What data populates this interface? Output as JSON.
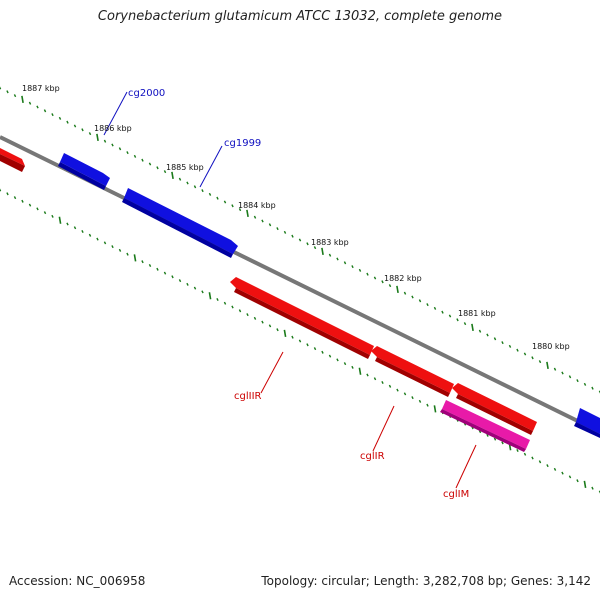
{
  "title": "Corynebacterium glutamicum ATCC 13032, complete genome",
  "footer": {
    "accession": "Accession: NC_006958",
    "summary": "Topology: circular; Length: 3,282,708 bp; Genes: 3,142"
  },
  "colors": {
    "backbone": "#777777",
    "tick": "#1a7a1a",
    "forward_gene": "#1010e0",
    "reverse_gene": "#ee1010",
    "methylase": "#e81aa8",
    "forward_label": "#1010c0",
    "reverse_label": "#cc0000"
  },
  "ticks": [
    {
      "label": "1887 kbp"
    },
    {
      "label": "1886 kbp"
    },
    {
      "label": "1885 kbp"
    },
    {
      "label": "1884 kbp"
    },
    {
      "label": "1883 kbp"
    },
    {
      "label": "1882 kbp"
    },
    {
      "label": "1881 kbp"
    },
    {
      "label": "1880 kbp"
    }
  ],
  "genes": [
    {
      "label": "cg2000",
      "strand": "forward"
    },
    {
      "label": "cg1999",
      "strand": "forward"
    },
    {
      "label": "cglIIR",
      "strand": "reverse"
    },
    {
      "label": "cglIR",
      "strand": "reverse"
    },
    {
      "label": "cglIM",
      "strand": "reverse"
    }
  ]
}
